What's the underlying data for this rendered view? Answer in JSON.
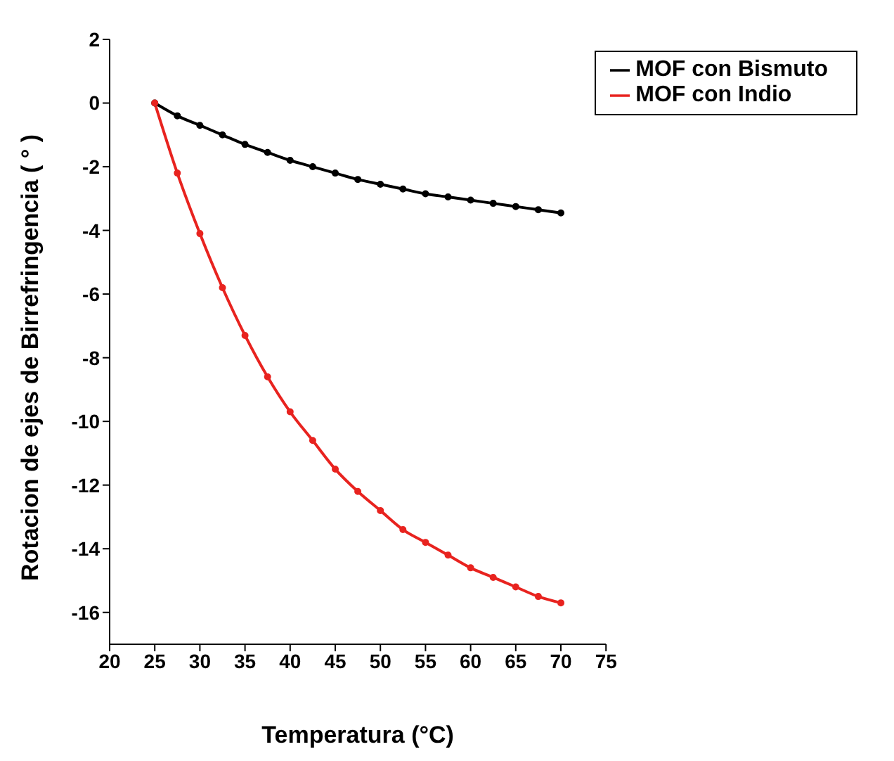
{
  "chart_data": {
    "type": "line",
    "xlabel": "Temperatura (°C)",
    "ylabel": "Rotacion de ejes de Birrefringencia ( ° )",
    "x": [
      25,
      27.5,
      30,
      32.5,
      35,
      37.5,
      40,
      42.5,
      45,
      47.5,
      50,
      52.5,
      55,
      57.5,
      60,
      62.5,
      65,
      67.5,
      70
    ],
    "series": [
      {
        "name": "MOF con Bismuto",
        "color": "#000000",
        "values": [
          0,
          -0.4,
          -0.7,
          -1.0,
          -1.3,
          -1.55,
          -1.8,
          -2.0,
          -2.2,
          -2.4,
          -2.55,
          -2.7,
          -2.85,
          -2.95,
          -3.05,
          -3.15,
          -3.25,
          -3.35,
          -3.45
        ]
      },
      {
        "name": "MOF con Indio",
        "color": "#e8231f",
        "values": [
          0,
          -2.2,
          -4.1,
          -5.8,
          -7.3,
          -8.6,
          -9.7,
          -10.6,
          -11.5,
          -12.2,
          -12.8,
          -13.4,
          -13.8,
          -14.2,
          -14.6,
          -14.9,
          -15.2,
          -15.5,
          -15.7
        ]
      }
    ],
    "xlim": [
      20,
      75
    ],
    "xticks": [
      20,
      25,
      30,
      35,
      40,
      45,
      50,
      55,
      60,
      65,
      70,
      75
    ],
    "ylim": [
      -17,
      2
    ],
    "yticks": [
      -16,
      -14,
      -12,
      -10,
      -8,
      -6,
      -4,
      -2,
      0,
      2
    ],
    "grid": false,
    "legend": "top right",
    "marker": "circle",
    "line_style": "solid"
  }
}
